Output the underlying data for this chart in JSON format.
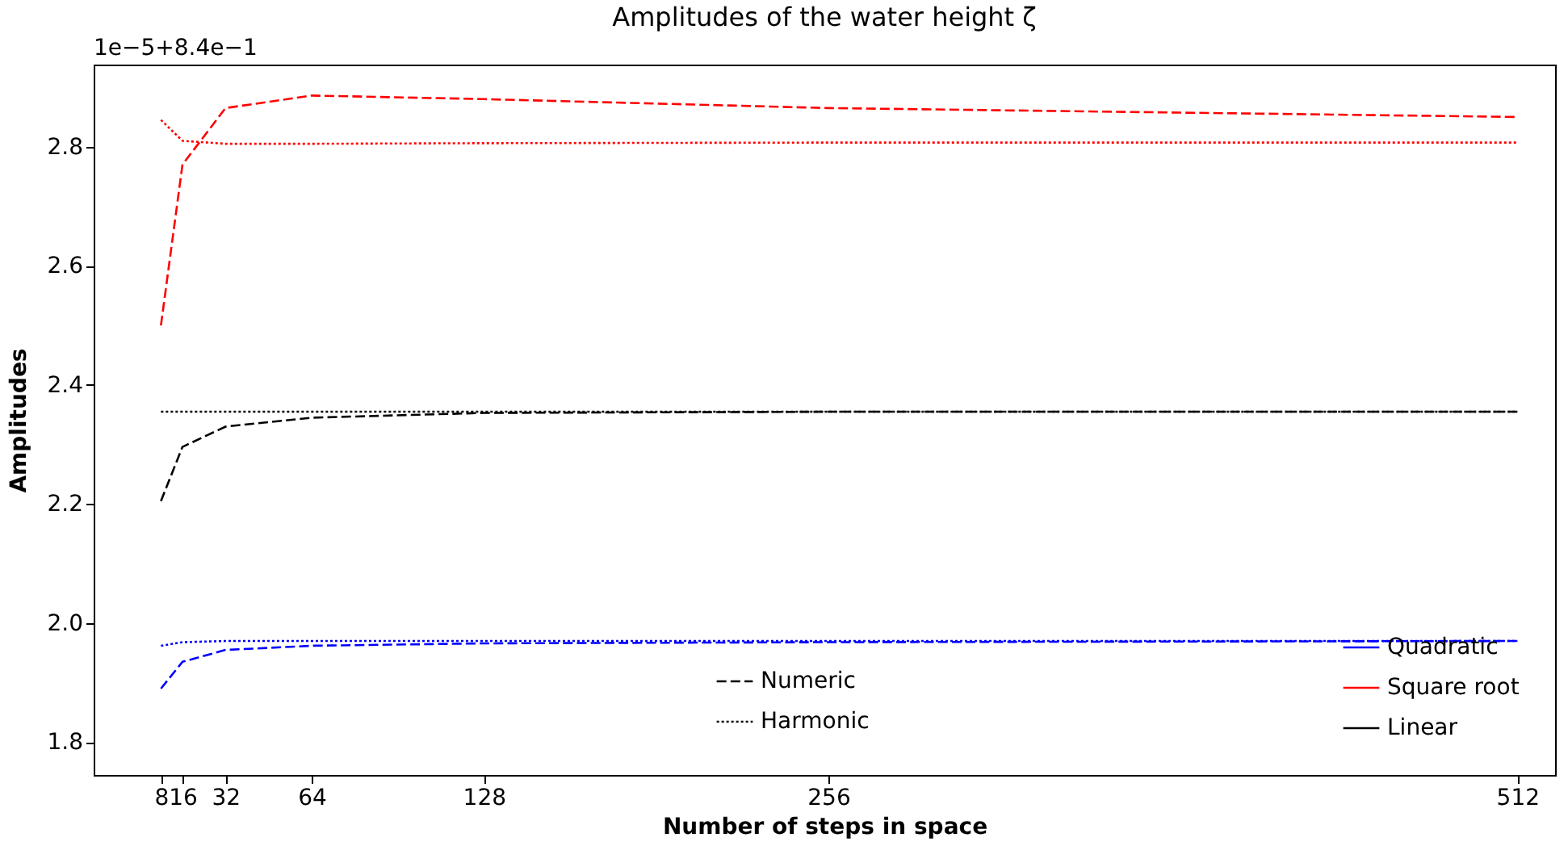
{
  "chart_data": {
    "type": "line",
    "title": "Amplitudes of the water height ζ",
    "xlabel": "Number of steps in space",
    "ylabel": "Amplitudes",
    "x": [
      8,
      16,
      32,
      64,
      128,
      256,
      512
    ],
    "xlim": [
      -17,
      526
    ],
    "xticks": [
      8,
      16,
      32,
      64,
      128,
      256,
      512
    ],
    "ylim": [
      1.745,
      2.938
    ],
    "yticks": [
      1.8,
      {
        "value": 2,
        "label": "2.0"
      },
      2.2,
      2.4,
      2.6,
      2.8
    ],
    "annotations": [
      "1e−5+8.4e−1",
      "Numeric",
      "Harmonic"
    ],
    "grid": false,
    "legend": "bottom right",
    "marker": "none",
    "series": [
      {
        "name": "Quadratic",
        "color": "#0000ff",
        "line_style": "dashed",
        "values": [
          1.89,
          1.935,
          1.955,
          1.962,
          1.966,
          1.968,
          1.97
        ]
      },
      {
        "color": "#0000ff",
        "line_style": "dotted",
        "values": [
          1.962,
          1.968,
          1.97,
          1.97,
          1.97,
          1.97,
          1.97
        ]
      },
      {
        "name": "Square root",
        "color": "#ff0000",
        "line_style": "dashed",
        "values": [
          2.5,
          2.77,
          2.865,
          2.886,
          2.88,
          2.865,
          2.85
        ]
      },
      {
        "color": "#ff0000",
        "line_style": "dotted",
        "values": [
          2.845,
          2.81,
          2.805,
          2.805,
          2.806,
          2.807,
          2.807
        ]
      },
      {
        "name": "Linear",
        "color": "#000000",
        "line_style": "dashed",
        "values": [
          2.205,
          2.296,
          2.33,
          2.345,
          2.353,
          2.355,
          2.355
        ]
      },
      {
        "color": "#000000",
        "line_style": "dotted",
        "values": [
          2.355,
          2.355,
          2.355,
          2.355,
          2.355,
          2.355,
          2.355
        ]
      }
    ]
  }
}
